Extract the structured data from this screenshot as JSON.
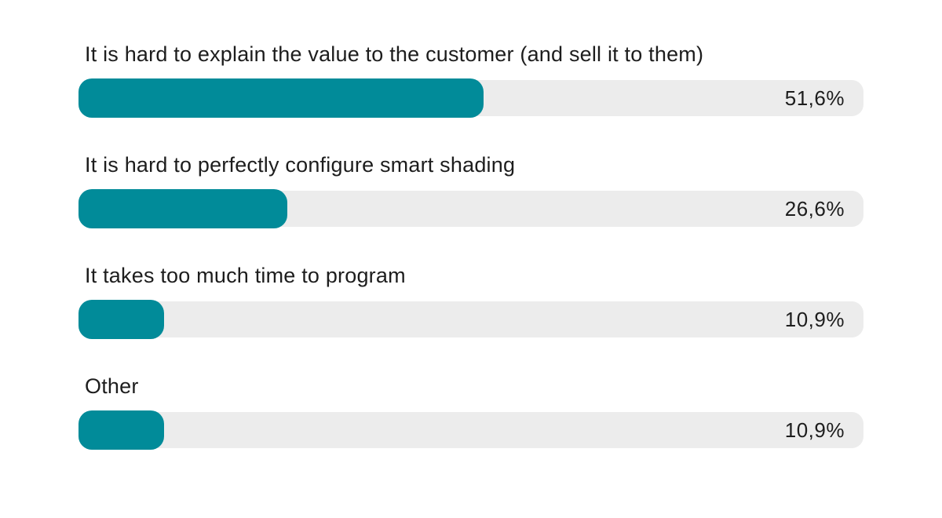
{
  "chart_data": {
    "type": "bar",
    "orientation": "horizontal",
    "title": "",
    "xlabel": "",
    "ylabel": "",
    "xlim": [
      0,
      100
    ],
    "grid": false,
    "legend": false,
    "categories": [
      "It is hard to explain the value to the customer (and sell it to them)",
      "It is hard to perfectly configure smart shading",
      "It takes too much time to program",
      "Other"
    ],
    "values": [
      51.6,
      26.6,
      10.9,
      10.9
    ],
    "value_labels": [
      "51,6%",
      "26,6%",
      "10,9%",
      "10,9%"
    ],
    "bars": [
      {
        "label": "It is hard to explain the value to the customer (and sell it to them)",
        "value": 51.6,
        "value_label": "51,6%"
      },
      {
        "label": "It is hard to perfectly configure smart shading",
        "value": 26.6,
        "value_label": "26,6%"
      },
      {
        "label": "It takes too much time to program",
        "value": 10.9,
        "value_label": "10,9%"
      },
      {
        "label": "Other",
        "value": 10.9,
        "value_label": "10,9%"
      }
    ],
    "colors": {
      "bar_fill": "#018b99",
      "bar_track": "#ececec",
      "label_text": "#1d1d1d",
      "value_text": "#1d1d1d",
      "background": "#ffffff"
    }
  }
}
